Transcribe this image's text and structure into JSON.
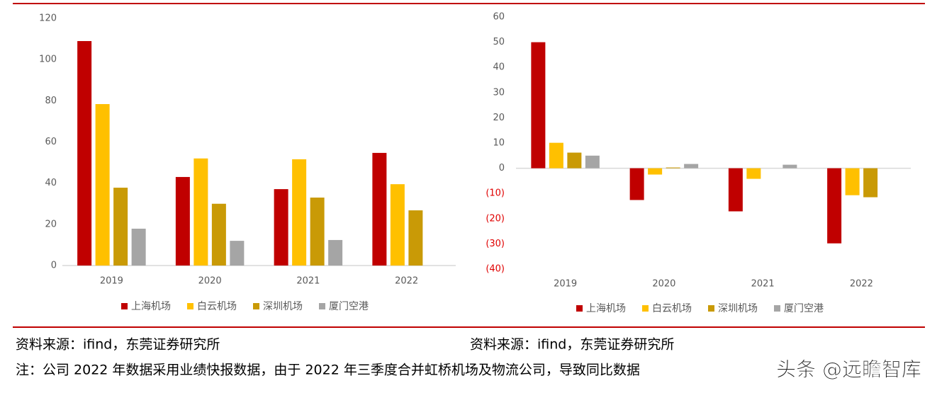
{
  "chart_data": [
    {
      "type": "bar",
      "categories": [
        "2019",
        "2020",
        "2021",
        "2022"
      ],
      "series": [
        {
          "name": "上海机场",
          "color": "#c00000",
          "values": [
            109,
            43,
            37.1,
            54.7
          ]
        },
        {
          "name": "白云机场",
          "color": "#ffc000",
          "values": [
            78.4,
            52,
            51.6,
            39.5
          ]
        },
        {
          "name": "深圳机场",
          "color": "#c99a06",
          "values": [
            37.8,
            30,
            33,
            26.8
          ]
        },
        {
          "name": "厦门空港",
          "color": "#a5a5a5",
          "values": [
            17.9,
            12,
            12.4,
            null
          ]
        }
      ],
      "ylim": [
        0,
        120
      ],
      "yticks": [
        0,
        20,
        40,
        60,
        80,
        100,
        120
      ],
      "grid": false,
      "legend": "bottom"
    },
    {
      "type": "bar",
      "categories": [
        "2019",
        "2020",
        "2021",
        "2022"
      ],
      "series": [
        {
          "name": "上海机场",
          "color": "#c00000",
          "values": [
            50,
            -12.6,
            -17.1,
            -29.8
          ]
        },
        {
          "name": "白云机场",
          "color": "#ffc000",
          "values": [
            10.1,
            -2.5,
            -4.2,
            -10.7
          ]
        },
        {
          "name": "深圳机场",
          "color": "#c99a06",
          "values": [
            6.2,
            0.3,
            null,
            -11.5
          ]
        },
        {
          "name": "厦门空港",
          "color": "#a5a5a5",
          "values": [
            5,
            1.7,
            1.4,
            null
          ]
        }
      ],
      "ylim": [
        -40,
        60
      ],
      "yticks": [
        {
          "value": -40,
          "label": "(40)"
        },
        {
          "value": -30,
          "label": "(30)"
        },
        {
          "value": -20,
          "label": "(20)"
        },
        {
          "value": -10,
          "label": "(10)"
        },
        0,
        10,
        20,
        30,
        40,
        50,
        60
      ],
      "grid": false,
      "legend": "bottom"
    }
  ],
  "sources": [
    "资料来源：ifind，东莞证券研究所",
    "资料来源：ifind，东莞证券研究所"
  ],
  "note": "注：公司 2022 年数据采用业绩快报数据，由于 2022 年三季度合并虹桥机场及物流公司，导致同比数据",
  "watermark": "头条 @远瞻智库"
}
